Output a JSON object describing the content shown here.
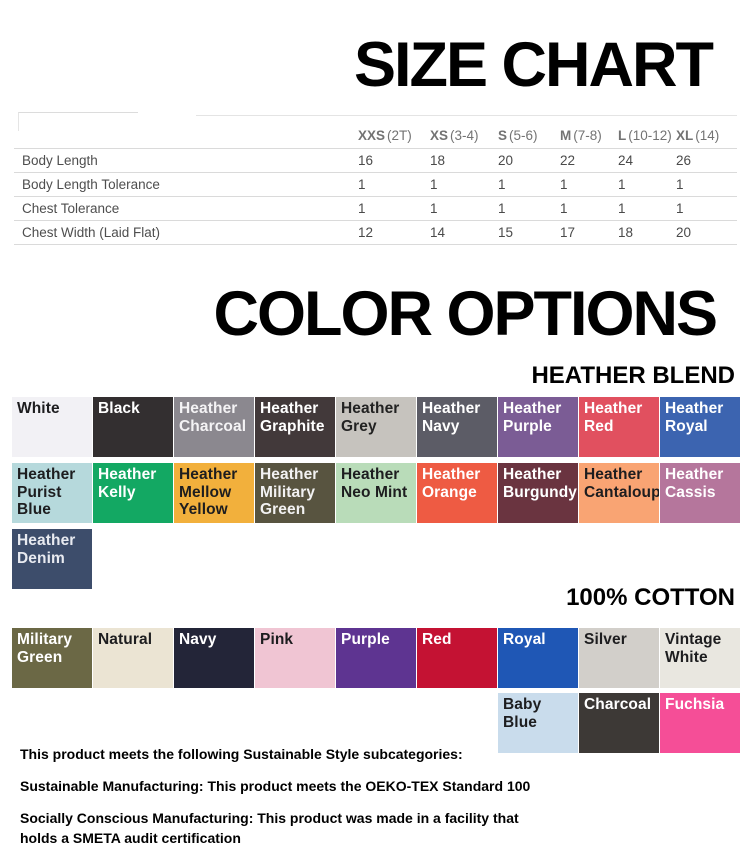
{
  "titles": {
    "size_chart": "SIZE CHART",
    "color_options": "COLOR OPTIONS",
    "heather_blend": "HEATHER BLEND",
    "cotton": "100% COTTON"
  },
  "size_chart": {
    "columns": [
      {
        "size": "XXS",
        "range": "(2T)"
      },
      {
        "size": "XS",
        "range": "(3-4)"
      },
      {
        "size": "S",
        "range": "(5-6)"
      },
      {
        "size": "M",
        "range": "(7-8)"
      },
      {
        "size": "L",
        "range": "(10-12)"
      },
      {
        "size": "XL",
        "range": "(14)"
      }
    ],
    "rows": [
      {
        "label": "Body Length",
        "values": [
          "16",
          "18",
          "20",
          "22",
          "24",
          "26"
        ]
      },
      {
        "label": "Body Length Tolerance",
        "values": [
          "1",
          "1",
          "1",
          "1",
          "1",
          "1"
        ]
      },
      {
        "label": "Chest Tolerance",
        "values": [
          "1",
          "1",
          "1",
          "1",
          "1",
          "1"
        ]
      },
      {
        "label": "Chest Width (Laid Flat)",
        "values": [
          "12",
          "14",
          "15",
          "17",
          "18",
          "20"
        ]
      }
    ]
  },
  "heather_colors": {
    "row1": [
      {
        "name": "White",
        "bg": "#f2f1f5",
        "fg": "#1d1d1f"
      },
      {
        "name": "Black",
        "bg": "#332f30",
        "fg": "#ffffff"
      },
      {
        "name": "Heather Charcoal",
        "bg": "#8b888f",
        "fg": "#f4f3f5"
      },
      {
        "name": "Heather Graphite",
        "bg": "#42393a",
        "fg": "#ffffff"
      },
      {
        "name": "Heather Grey",
        "bg": "#c6c3be",
        "fg": "#222222"
      },
      {
        "name": "Heather Navy",
        "bg": "#5c5c66",
        "fg": "#ffffff"
      },
      {
        "name": "Heather Purple",
        "bg": "#7b5c95",
        "fg": "#ffffff"
      },
      {
        "name": "Heather Red",
        "bg": "#e1505f",
        "fg": "#ffffff"
      },
      {
        "name": "Heather Royal",
        "bg": "#3c64b0",
        "fg": "#ffffff"
      }
    ],
    "row2": [
      {
        "name": "Heather Purist Blue",
        "bg": "#b6d9dc",
        "fg": "#1d1d1f"
      },
      {
        "name": "Heather Kelly",
        "bg": "#13a863",
        "fg": "#ffffff"
      },
      {
        "name": "Heather Mellow Yellow",
        "bg": "#f2b03c",
        "fg": "#1d1d1f"
      },
      {
        "name": "Heather Military Green",
        "bg": "#585440",
        "fg": "#f2f2f2"
      },
      {
        "name": "Heather Neo Mint",
        "bg": "#b9dcb9",
        "fg": "#1d1d1f"
      },
      {
        "name": "Heather Orange",
        "bg": "#ee5b43",
        "fg": "#ffffff"
      },
      {
        "name": "Heather Burgundy",
        "bg": "#6a3440",
        "fg": "#ffffff"
      },
      {
        "name": "Heather Cantaloup",
        "bg": "#f9a473",
        "fg": "#1d1d1f"
      },
      {
        "name": "Heather Cassis",
        "bg": "#b5769c",
        "fg": "#ffffff"
      }
    ],
    "row3": [
      {
        "name": "Heather Denim",
        "bg": "#3d4d6b",
        "fg": "#e8eaf0"
      }
    ]
  },
  "cotton_colors": {
    "row1": [
      {
        "name": "Military Green",
        "bg": "#6b6845",
        "fg": "#ffffff"
      },
      {
        "name": "Natural",
        "bg": "#ebe4d3",
        "fg": "#1d1d1f"
      },
      {
        "name": "Navy",
        "bg": "#232538",
        "fg": "#ffffff"
      },
      {
        "name": "Pink",
        "bg": "#f0c5d3",
        "fg": "#1d1d1f"
      },
      {
        "name": "Purple",
        "bg": "#5e3491",
        "fg": "#ffffff"
      },
      {
        "name": "Red",
        "bg": "#c41233",
        "fg": "#ffffff"
      },
      {
        "name": "Royal",
        "bg": "#1f57b5",
        "fg": "#ffffff"
      },
      {
        "name": "Silver",
        "bg": "#d2cfca",
        "fg": "#1d1d1f"
      },
      {
        "name": "Vintage White",
        "bg": "#e9e7e0",
        "fg": "#1d1d1f"
      }
    ],
    "row2": [
      {
        "name": "Baby Blue",
        "bg": "#c9dcec",
        "fg": "#1d1d1f"
      },
      {
        "name": "Charcoal",
        "bg": "#3d3936",
        "fg": "#ffffff"
      },
      {
        "name": "Fuchsia",
        "bg": "#f54e97",
        "fg": "#ffffff"
      }
    ]
  },
  "footer": {
    "line1": "This product meets the following Sustainable Style subcategories:",
    "line2": "Sustainable Manufacturing: This product meets the OEKO-TEX Standard 100",
    "line3a": "Socially Conscious Manufacturing: This product was made in a facility that",
    "line3b": "holds a SMETA audit certification"
  }
}
